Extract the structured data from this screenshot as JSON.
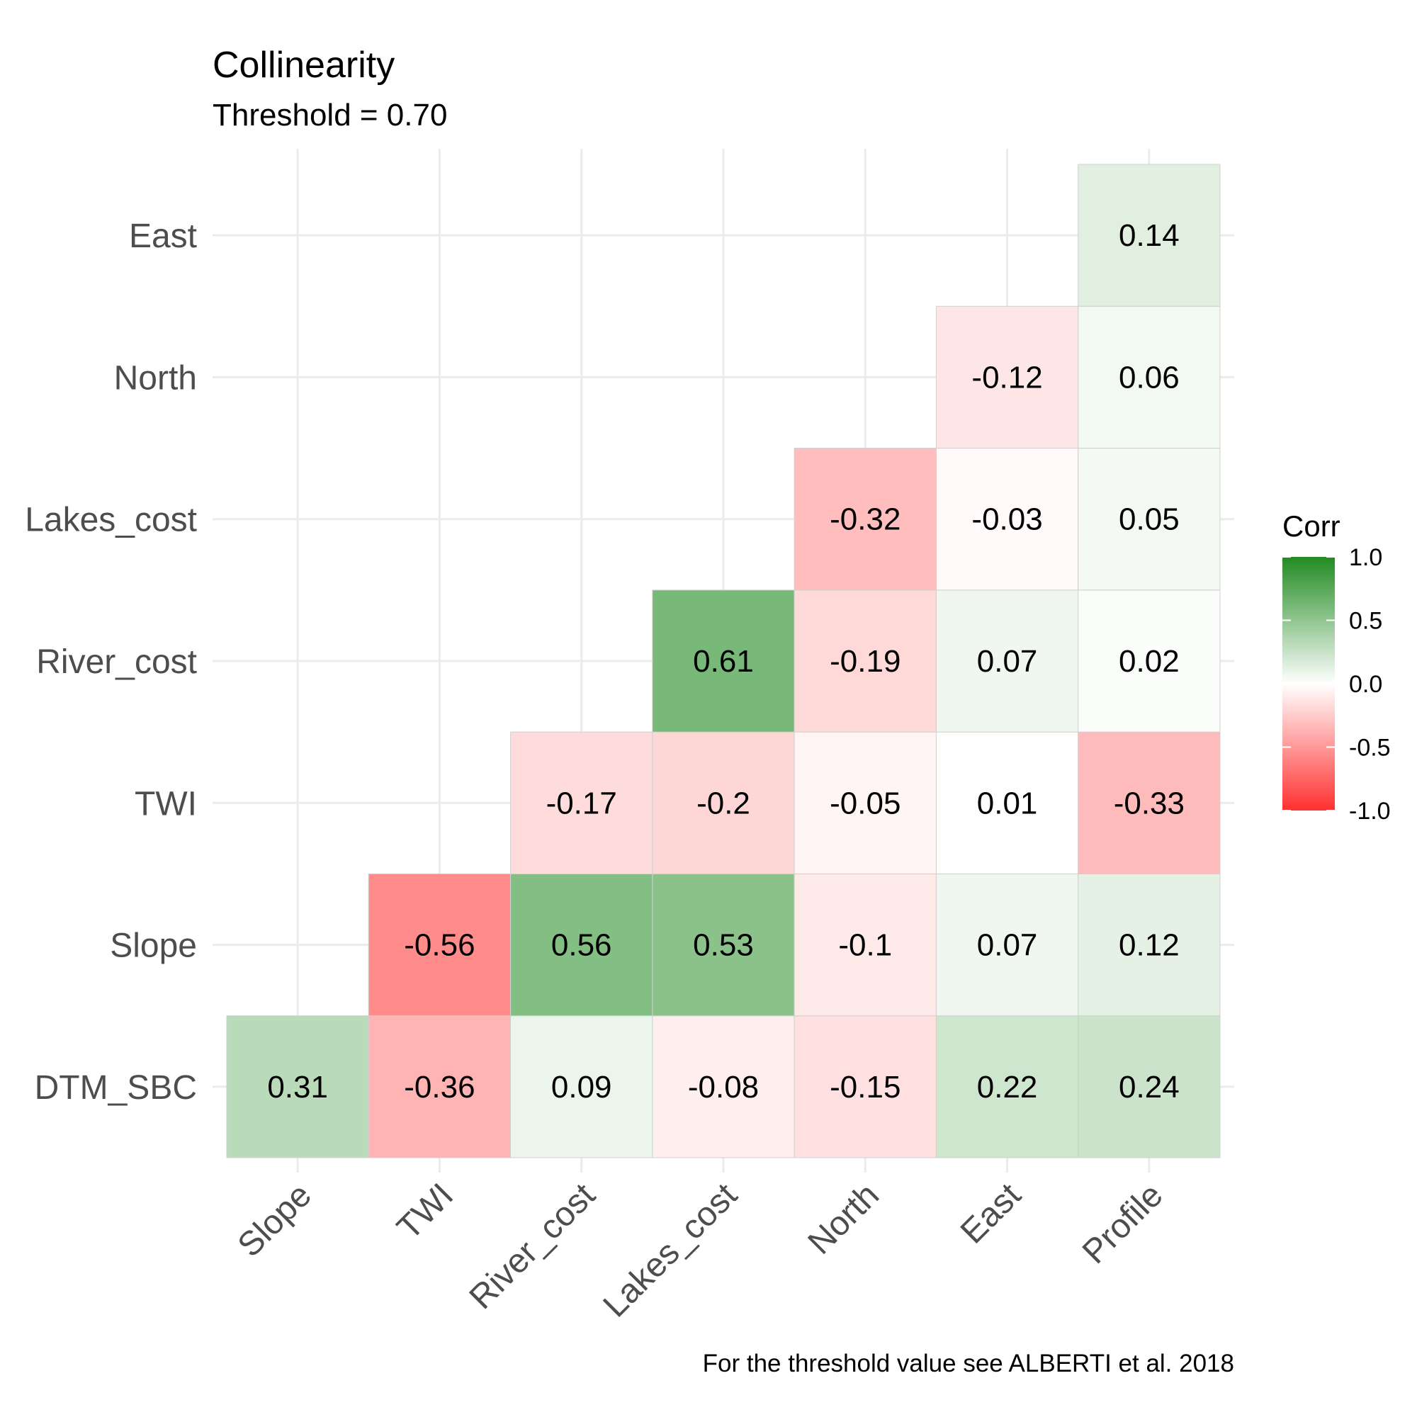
{
  "chart_data": {
    "type": "heatmap",
    "title": "Collinearity",
    "subtitle": "Threshold = 0.70",
    "caption": "For the threshold value see ALBERTI et al. 2018",
    "x_categories": [
      "Slope",
      "TWI",
      "River_cost",
      "Lakes_cost",
      "North",
      "East",
      "Profile"
    ],
    "y_categories": [
      "DTM_SBC",
      "Slope",
      "TWI",
      "River_cost",
      "Lakes_cost",
      "North",
      "East"
    ],
    "values": [
      [
        0.31,
        -0.36,
        0.09,
        -0.08,
        -0.15,
        0.22,
        0.24
      ],
      [
        null,
        -0.56,
        0.56,
        0.53,
        -0.1,
        0.07,
        0.12
      ],
      [
        null,
        null,
        -0.17,
        -0.2,
        -0.05,
        0.01,
        -0.33
      ],
      [
        null,
        null,
        null,
        0.61,
        -0.19,
        0.07,
        0.02
      ],
      [
        null,
        null,
        null,
        null,
        -0.32,
        -0.03,
        0.05
      ],
      [
        null,
        null,
        null,
        null,
        null,
        -0.12,
        0.06
      ],
      [
        null,
        null,
        null,
        null,
        null,
        null,
        0.14
      ]
    ],
    "labels": [
      [
        "0.31",
        "-0.36",
        "0.09",
        "-0.08",
        "-0.15",
        "0.22",
        "0.24"
      ],
      [
        null,
        "-0.56",
        "0.56",
        "0.53",
        "-0.1",
        "0.07",
        "0.12"
      ],
      [
        null,
        null,
        "-0.17",
        "-0.2",
        "-0.05",
        "0.01",
        "-0.33"
      ],
      [
        null,
        null,
        null,
        "0.61",
        "-0.19",
        "0.07",
        "0.02"
      ],
      [
        null,
        null,
        null,
        null,
        "-0.32",
        "-0.03",
        "0.05"
      ],
      [
        null,
        null,
        null,
        null,
        null,
        "-0.12",
        "0.06"
      ],
      [
        null,
        null,
        null,
        null,
        null,
        null,
        "0.14"
      ]
    ],
    "legend": {
      "title": "Corr",
      "ticks": [
        "1.0",
        "0.5",
        "0.0",
        "-0.5",
        "-1.0"
      ],
      "limits": [
        -1,
        1
      ],
      "position": "right"
    },
    "colors": {
      "low": "#ff3030",
      "mid": "#ffffff",
      "high": "#228b22"
    },
    "grid": true
  }
}
